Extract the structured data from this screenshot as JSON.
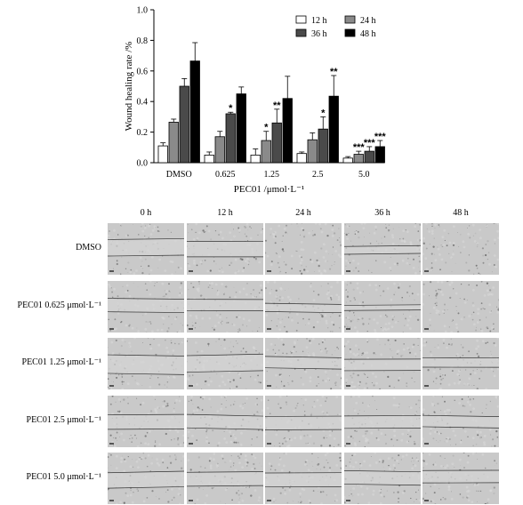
{
  "chart_data": {
    "type": "bar",
    "ylabel": "Wound healing rate /%",
    "xlabel": "PEC01 /μmol·L⁻¹",
    "ylim": [
      0,
      1.0
    ],
    "yticks": [
      "0.0",
      "0.2",
      "0.4",
      "0.6",
      "0.8",
      "1.0"
    ],
    "categories": [
      "DMSO",
      "0.625",
      "1.25",
      "2.5",
      "5.0"
    ],
    "series": [
      {
        "name": "12 h",
        "values": [
          0.11,
          0.05,
          0.05,
          0.06,
          0.03
        ],
        "errors": [
          0.02,
          0.02,
          0.04,
          0.01,
          0.01
        ],
        "sig": [
          "",
          "",
          "",
          "",
          ""
        ],
        "fill": "#ffffff"
      },
      {
        "name": "24 h",
        "values": [
          0.265,
          0.17,
          0.145,
          0.15,
          0.055
        ],
        "errors": [
          0.02,
          0.035,
          0.06,
          0.045,
          0.02
        ],
        "sig": [
          "",
          "",
          "*",
          "",
          "***"
        ],
        "fill": "#8a8a8a"
      },
      {
        "name": "36 h",
        "values": [
          0.5,
          0.32,
          0.26,
          0.22,
          0.075
        ],
        "errors": [
          0.05,
          0.01,
          0.09,
          0.08,
          0.03
        ],
        "sig": [
          "",
          "*",
          "**",
          "*",
          "***"
        ],
        "fill": "#4a4a4a"
      },
      {
        "name": "48 h",
        "values": [
          0.665,
          0.45,
          0.42,
          0.435,
          0.105
        ],
        "errors": [
          0.12,
          0.045,
          0.145,
          0.135,
          0.04
        ],
        "sig": [
          "",
          "",
          "",
          "**",
          "***"
        ],
        "fill": "#000000"
      }
    ],
    "legend_position": "top-right",
    "grid": false
  },
  "image_grid": {
    "columns": [
      "0 h",
      "12 h",
      "24 h",
      "36 h",
      "48 h"
    ],
    "rows": [
      "DMSO",
      "PEC01 0.625 μmol·L⁻¹",
      "PEC01 1.25 μmol·L⁻¹",
      "PEC01 2.5 μmol·L⁻¹",
      "PEC01 5.0 μmol·L⁻¹"
    ],
    "wound_gap": [
      [
        0.32,
        0.3,
        0.0,
        0.15,
        0.0
      ],
      [
        0.26,
        0.22,
        0.16,
        0.1,
        0.0
      ],
      [
        0.36,
        0.32,
        0.22,
        0.22,
        0.18
      ],
      [
        0.28,
        0.26,
        0.26,
        0.24,
        0.22
      ],
      [
        0.3,
        0.27,
        0.27,
        0.26,
        0.24
      ]
    ]
  }
}
